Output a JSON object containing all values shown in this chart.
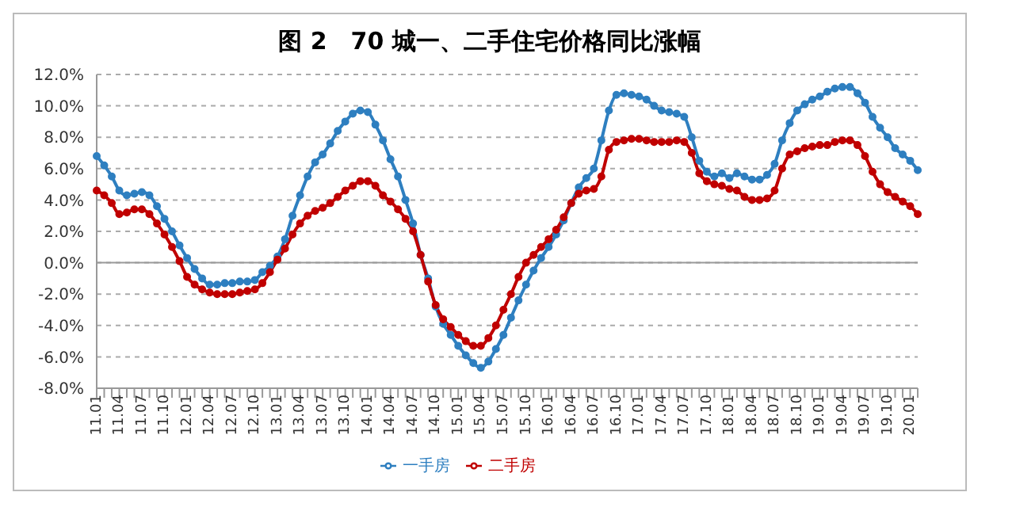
{
  "chart_data": {
    "type": "line",
    "title": "图 2　70 城一、二手住宅价格同比涨幅",
    "categories": [
      "11.01",
      null,
      null,
      "11.04",
      null,
      null,
      "11.07",
      null,
      null,
      "11.10",
      null,
      null,
      "12.01",
      null,
      null,
      "12.04",
      null,
      null,
      "12.07",
      null,
      null,
      "12.10",
      null,
      null,
      "13.01",
      null,
      null,
      "13.04",
      null,
      null,
      "13.07",
      null,
      null,
      "13.10",
      null,
      null,
      "14.01",
      null,
      null,
      "14.04",
      null,
      null,
      "14.07",
      null,
      null,
      "14.10",
      null,
      null,
      "15.01",
      null,
      null,
      "15.04",
      null,
      null,
      "15.07",
      null,
      null,
      "15.10",
      null,
      null,
      "16.01",
      null,
      null,
      "16.04",
      null,
      null,
      "16.07",
      null,
      null,
      "16.10",
      null,
      null,
      "17.01",
      null,
      null,
      "17.04",
      null,
      null,
      "17.07",
      null,
      null,
      "17.10",
      null,
      null,
      "18.01",
      null,
      null,
      "18.04",
      null,
      null,
      "18.07",
      null,
      null,
      "18.10",
      null,
      null,
      "19.01",
      null,
      null,
      "19.04",
      null,
      null,
      "19.07",
      null,
      null,
      "19.10",
      null,
      null,
      "20.01",
      null
    ],
    "series": [
      {
        "name": "一手房",
        "color": "#2e7fc0",
        "values": [
          6.8,
          6.2,
          5.5,
          4.6,
          4.3,
          4.4,
          4.5,
          4.3,
          3.6,
          2.8,
          2.0,
          1.1,
          0.3,
          -0.4,
          -1.0,
          -1.4,
          -1.4,
          -1.3,
          -1.3,
          -1.2,
          -1.2,
          -1.1,
          -0.6,
          -0.2,
          0.4,
          1.5,
          3.0,
          4.3,
          5.5,
          6.4,
          6.9,
          7.6,
          8.4,
          9.0,
          9.5,
          9.7,
          9.6,
          8.8,
          7.8,
          6.6,
          5.5,
          4.0,
          2.5,
          0.5,
          -1.0,
          -2.8,
          -3.9,
          -4.6,
          -5.3,
          -5.9,
          -6.4,
          -6.7,
          -6.3,
          -5.5,
          -4.6,
          -3.5,
          -2.4,
          -1.4,
          -0.5,
          0.3,
          1.0,
          1.8,
          2.7,
          3.8,
          4.8,
          5.4,
          6.0,
          7.8,
          9.7,
          10.7,
          10.8,
          10.7,
          10.6,
          10.4,
          10.0,
          9.7,
          9.6,
          9.5,
          9.3,
          8.0,
          6.5,
          5.8,
          5.5,
          5.7,
          5.4,
          5.7,
          5.5,
          5.3,
          5.3,
          5.6,
          6.3,
          7.8,
          8.9,
          9.7,
          10.1,
          10.4,
          10.6,
          10.9,
          11.1,
          11.2,
          11.2,
          10.8,
          10.2,
          9.3,
          8.6,
          8.0,
          7.3,
          6.9,
          6.5,
          5.9
        ]
      },
      {
        "name": "二手房",
        "color": "#c00000",
        "values": [
          4.6,
          4.3,
          3.8,
          3.1,
          3.2,
          3.4,
          3.4,
          3.1,
          2.5,
          1.8,
          1.0,
          0.1,
          -0.9,
          -1.4,
          -1.7,
          -1.9,
          -2.0,
          -2.0,
          -2.0,
          -1.9,
          -1.8,
          -1.7,
          -1.3,
          -0.6,
          0.2,
          0.9,
          1.8,
          2.5,
          3.0,
          3.3,
          3.5,
          3.8,
          4.2,
          4.6,
          4.9,
          5.2,
          5.2,
          4.9,
          4.3,
          3.9,
          3.4,
          2.8,
          2.0,
          0.5,
          -1.2,
          -2.7,
          -3.6,
          -4.1,
          -4.6,
          -5.0,
          -5.3,
          -5.3,
          -4.8,
          -4.0,
          -3.0,
          -2.0,
          -0.9,
          0.0,
          0.5,
          1.0,
          1.5,
          2.1,
          2.9,
          3.8,
          4.4,
          4.6,
          4.7,
          5.5,
          7.2,
          7.7,
          7.8,
          7.9,
          7.9,
          7.8,
          7.7,
          7.7,
          7.7,
          7.8,
          7.7,
          7.0,
          5.7,
          5.2,
          5.0,
          4.9,
          4.7,
          4.6,
          4.2,
          4.0,
          4.0,
          4.1,
          4.6,
          6.0,
          6.9,
          7.1,
          7.3,
          7.4,
          7.5,
          7.5,
          7.7,
          7.8,
          7.8,
          7.5,
          6.8,
          5.8,
          5.0,
          4.5,
          4.2,
          3.9,
          3.6,
          3.1
        ]
      }
    ],
    "ylim": [
      -8,
      12
    ],
    "yticks": [
      {
        "value": -8,
        "label": "-8.0%"
      },
      {
        "value": -6,
        "label": "-6.0%"
      },
      {
        "value": -4,
        "label": "-4.0%"
      },
      {
        "value": -2,
        "label": "-2.0%"
      },
      {
        "value": 0,
        "label": "0.0%"
      },
      {
        "value": 2,
        "label": "2.0%"
      },
      {
        "value": 4,
        "label": "4.0%"
      },
      {
        "value": 6,
        "label": "6.0%"
      },
      {
        "value": 8,
        "label": "8.0%"
      },
      {
        "value": 10,
        "label": "10.0%"
      },
      {
        "value": 12,
        "label": "12.0%"
      }
    ],
    "grid": "y",
    "legend": "bottom",
    "marker": "circle",
    "line_style": "solid"
  }
}
